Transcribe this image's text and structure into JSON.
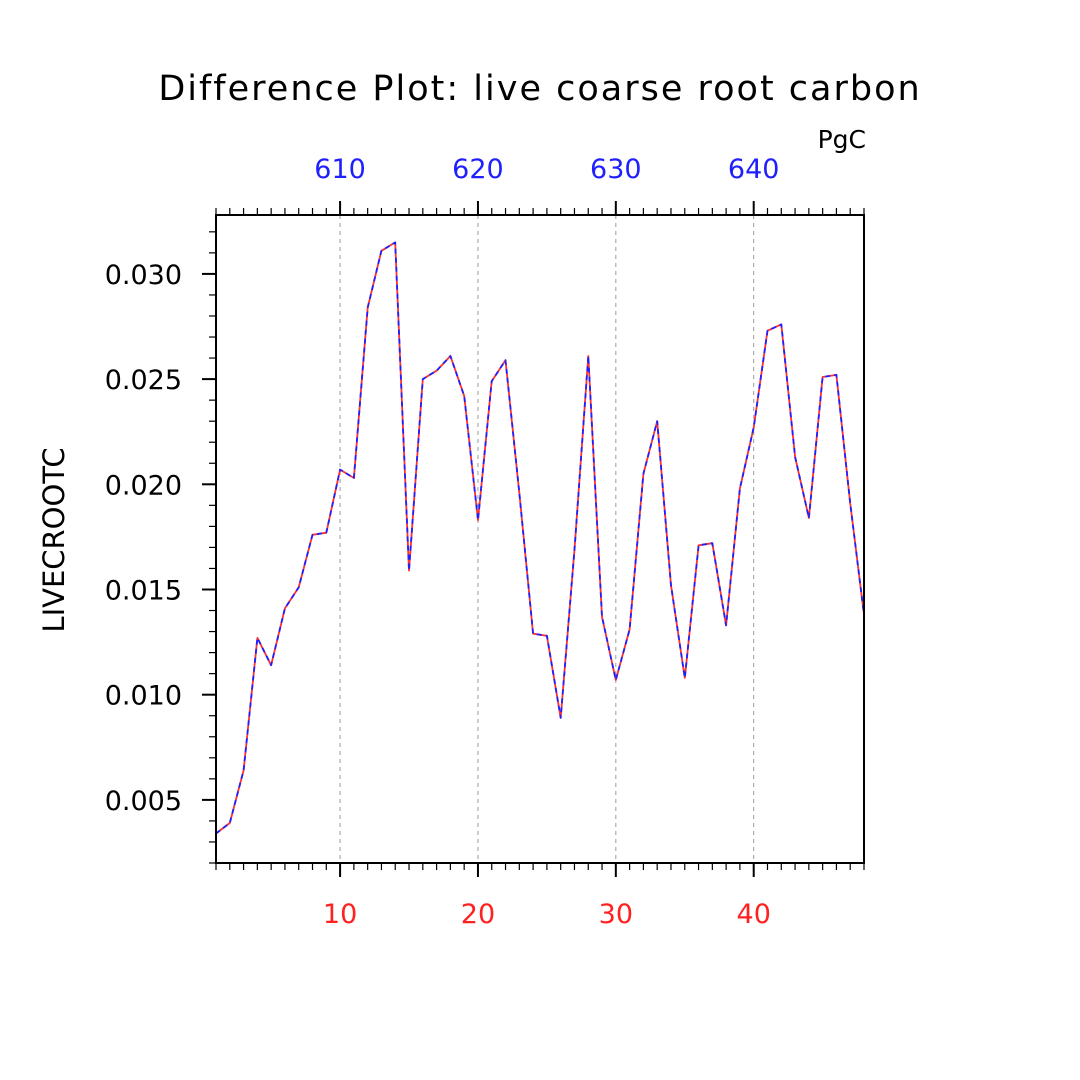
{
  "chart_data": {
    "type": "line",
    "title": "Difference Plot: live coarse root carbon",
    "units": "PgC",
    "ylabel": "LIVECROOTC",
    "xlabel": "",
    "xlim": [
      1,
      48
    ],
    "ylim": [
      0.002,
      0.0328
    ],
    "bottom_axis": {
      "ticks": [
        10,
        20,
        30,
        40
      ],
      "labels": [
        "10",
        "20",
        "30",
        "40"
      ],
      "color": "#ff2020"
    },
    "top_axis": {
      "ticks": [
        10,
        20,
        30,
        40
      ],
      "labels": [
        "610",
        "620",
        "630",
        "640"
      ],
      "color": "#2020ff"
    },
    "yticks": [
      0.005,
      0.01,
      0.015,
      0.02,
      0.025,
      0.03
    ],
    "ytick_labels": [
      "0.005",
      "0.010",
      "0.015",
      "0.020",
      "0.025",
      "0.030"
    ],
    "grid": "dashed vertical lines at major x ticks",
    "series": [
      {
        "color": "#ff3030",
        "x": [
          1,
          2,
          3,
          4,
          5,
          6,
          7,
          8,
          9,
          10,
          11,
          12,
          13,
          14,
          15,
          16,
          17,
          18,
          19,
          20,
          21,
          22,
          23,
          24,
          25,
          26,
          27,
          28,
          29,
          30,
          31,
          32,
          33,
          34,
          35,
          36,
          37,
          38,
          39,
          40,
          41,
          42,
          43,
          44,
          45,
          46,
          47,
          48
        ],
        "values": [
          0.0034,
          0.0039,
          0.0064,
          0.0127,
          0.0114,
          0.0141,
          0.0151,
          0.0176,
          0.0177,
          0.0207,
          0.0203,
          0.0284,
          0.0311,
          0.0315,
          0.0159,
          0.025,
          0.0254,
          0.0261,
          0.0242,
          0.0183,
          0.0249,
          0.0259,
          0.0196,
          0.0129,
          0.0128,
          0.0089,
          0.0169,
          0.0261,
          0.0137,
          0.0107,
          0.0131,
          0.0205,
          0.023,
          0.0152,
          0.0108,
          0.0171,
          0.0172,
          0.0133,
          0.0198,
          0.0227,
          0.0273,
          0.0276,
          0.0213,
          0.0184,
          0.0251,
          0.0252,
          0.0191,
          0.0138
        ]
      },
      {
        "color": "#2020ff",
        "x": [
          1,
          2,
          3,
          4,
          5,
          6,
          7,
          8,
          9,
          10,
          11,
          12,
          13,
          14,
          15,
          16,
          17,
          18,
          19,
          20,
          21,
          22,
          23,
          24,
          25,
          26,
          27,
          28,
          29,
          30,
          31,
          32,
          33,
          34,
          35,
          36,
          37,
          38,
          39,
          40,
          41,
          42,
          43,
          44,
          45,
          46,
          47,
          48
        ],
        "values": [
          0.0034,
          0.0039,
          0.0064,
          0.0127,
          0.0114,
          0.0141,
          0.0151,
          0.0176,
          0.0177,
          0.0207,
          0.0203,
          0.0284,
          0.0311,
          0.0315,
          0.0159,
          0.025,
          0.0254,
          0.0261,
          0.0242,
          0.0183,
          0.0249,
          0.0259,
          0.0196,
          0.0129,
          0.0128,
          0.0089,
          0.0169,
          0.0261,
          0.0137,
          0.0107,
          0.0131,
          0.0205,
          0.023,
          0.0152,
          0.0108,
          0.0171,
          0.0172,
          0.0133,
          0.0198,
          0.0227,
          0.0273,
          0.0276,
          0.0213,
          0.0184,
          0.0251,
          0.0252,
          0.0191,
          0.0138
        ]
      }
    ]
  }
}
